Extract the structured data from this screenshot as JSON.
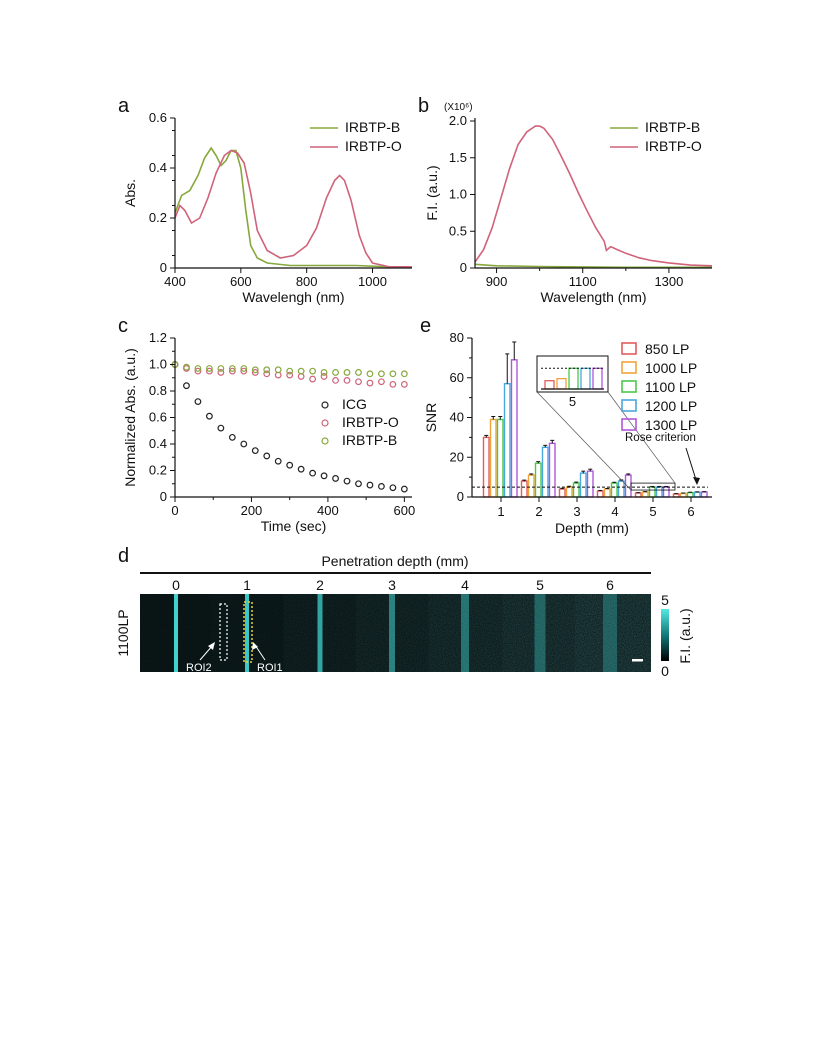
{
  "colors": {
    "green": "#86a83c",
    "pink": "#d0637a",
    "black": "#222222",
    "cyan": "#3fd3d0",
    "c850": "#e35d5d",
    "c1000": "#f0a33a",
    "c1100": "#4bc84b",
    "c1200": "#47a9de",
    "c1300": "#b058d8"
  },
  "chart_data": [
    {
      "panel_label": "a",
      "type": "line",
      "xlabel": "Wavelengh (nm)",
      "ylabel": "Abs.",
      "xlim": [
        400,
        1120
      ],
      "ylim": [
        0,
        0.6
      ],
      "xticks": [
        400,
        600,
        800,
        1000
      ],
      "yticks": [
        0,
        0.2,
        0.4,
        0.6
      ],
      "ytick_labels": [
        "0",
        "0.2",
        "0.4",
        "0.6"
      ],
      "legend_position": "top-right",
      "series": [
        {
          "name": "IRBTP-B",
          "color_key": "green",
          "x": [
            400,
            420,
            445,
            470,
            490,
            510,
            525,
            540,
            555,
            570,
            585,
            600,
            615,
            630,
            650,
            680,
            750,
            850,
            950,
            1050,
            1120
          ],
          "y": [
            0.22,
            0.29,
            0.31,
            0.37,
            0.44,
            0.48,
            0.45,
            0.41,
            0.43,
            0.47,
            0.47,
            0.4,
            0.23,
            0.09,
            0.04,
            0.02,
            0.01,
            0.01,
            0.01,
            0.005,
            0.005
          ]
        },
        {
          "name": "IRBTP-O",
          "color_key": "pink",
          "x": [
            400,
            415,
            430,
            450,
            475,
            500,
            525,
            550,
            570,
            590,
            610,
            630,
            650,
            680,
            720,
            760,
            800,
            830,
            860,
            885,
            900,
            915,
            935,
            960,
            980,
            1000,
            1050,
            1120
          ],
          "y": [
            0.2,
            0.25,
            0.23,
            0.18,
            0.2,
            0.28,
            0.38,
            0.45,
            0.47,
            0.46,
            0.42,
            0.3,
            0.15,
            0.07,
            0.04,
            0.05,
            0.09,
            0.16,
            0.28,
            0.35,
            0.37,
            0.35,
            0.27,
            0.13,
            0.06,
            0.02,
            0.005,
            0.005
          ]
        }
      ]
    },
    {
      "panel_label": "b",
      "type": "line",
      "xlabel": "Wavelength (nm)",
      "ylabel": "F.I. (a.u.)",
      "y_multiplier": "(X10⁶)",
      "xlim": [
        850,
        1400
      ],
      "ylim": [
        0,
        2.0
      ],
      "xticks": [
        900,
        1100,
        1300
      ],
      "yticks": [
        0,
        0.5,
        1.0,
        1.5,
        2.0
      ],
      "ytick_labels": [
        "0",
        "0.5",
        "1.0",
        "1.5",
        "2.0"
      ],
      "legend_position": "top-right",
      "series": [
        {
          "name": "IRBTP-B",
          "color_key": "green",
          "x": [
            850,
            900,
            1000,
            1100,
            1200,
            1300,
            1400
          ],
          "y": [
            0.05,
            0.03,
            0.02,
            0.015,
            0.01,
            0.01,
            0.01
          ]
        },
        {
          "name": "IRBTP-O",
          "color_key": "pink",
          "x": [
            850,
            870,
            890,
            910,
            930,
            950,
            970,
            990,
            1000,
            1010,
            1030,
            1050,
            1070,
            1090,
            1110,
            1130,
            1150,
            1155,
            1165,
            1180,
            1200,
            1230,
            1260,
            1300,
            1350,
            1400
          ],
          "y": [
            0.08,
            0.25,
            0.55,
            0.95,
            1.35,
            1.68,
            1.85,
            1.93,
            1.93,
            1.9,
            1.75,
            1.52,
            1.28,
            1.02,
            0.78,
            0.55,
            0.36,
            0.24,
            0.29,
            0.25,
            0.2,
            0.14,
            0.1,
            0.07,
            0.04,
            0.03
          ]
        }
      ]
    },
    {
      "panel_label": "c",
      "type": "scatter",
      "xlabel": "Time (sec)",
      "ylabel": "Normalized Abs. (a.u.)",
      "xlim": [
        0,
        620
      ],
      "ylim": [
        0,
        1.2
      ],
      "xticks": [
        0,
        200,
        400,
        600
      ],
      "yticks": [
        0,
        0.2,
        0.4,
        0.6,
        0.8,
        1.0,
        1.2
      ],
      "ytick_labels": [
        "0",
        "0.2",
        "0.4",
        "0.6",
        "0.8",
        "1.0",
        "1.2"
      ],
      "legend_position": "center-right",
      "x": [
        0,
        30,
        60,
        90,
        120,
        150,
        180,
        210,
        240,
        270,
        300,
        330,
        360,
        390,
        420,
        450,
        480,
        510,
        540,
        570,
        600
      ],
      "series": [
        {
          "name": "ICG",
          "color_key": "black",
          "y": [
            1.0,
            0.84,
            0.72,
            0.61,
            0.52,
            0.45,
            0.4,
            0.35,
            0.31,
            0.27,
            0.24,
            0.21,
            0.18,
            0.16,
            0.14,
            0.12,
            0.1,
            0.09,
            0.08,
            0.07,
            0.06
          ]
        },
        {
          "name": "IRBTP-O",
          "color_key": "pink",
          "y": [
            1.0,
            0.97,
            0.95,
            0.95,
            0.94,
            0.95,
            0.95,
            0.94,
            0.93,
            0.92,
            0.92,
            0.91,
            0.89,
            0.91,
            0.88,
            0.88,
            0.87,
            0.86,
            0.87,
            0.85,
            0.85
          ]
        },
        {
          "name": "IRBTP-B",
          "color_key": "green",
          "y": [
            1.0,
            0.98,
            0.97,
            0.97,
            0.97,
            0.97,
            0.97,
            0.96,
            0.96,
            0.96,
            0.95,
            0.95,
            0.95,
            0.94,
            0.94,
            0.94,
            0.94,
            0.93,
            0.93,
            0.93,
            0.93
          ]
        }
      ]
    },
    {
      "panel_label": "e",
      "type": "bar",
      "xlabel": "Depth (mm)",
      "ylabel": "SNR",
      "ylim": [
        0,
        80
      ],
      "yticks": [
        0,
        20,
        40,
        60,
        80
      ],
      "categories": [
        "1",
        "2",
        "3",
        "4",
        "5",
        "6"
      ],
      "legend_position": "top-right",
      "threshold": {
        "value": 5,
        "label": "Rose criterion"
      },
      "inset_category": "5",
      "series": [
        {
          "name": "850 LP",
          "color_key": "c850",
          "values": [
            30,
            8,
            4,
            3,
            2,
            1.5
          ],
          "errors": [
            1,
            0.5,
            0.4,
            0.3,
            0.2,
            0.2
          ]
        },
        {
          "name": "1000 LP",
          "color_key": "c1000",
          "values": [
            39,
            11,
            5,
            4,
            2.5,
            1.8
          ],
          "errors": [
            1.5,
            0.6,
            0.4,
            0.3,
            0.2,
            0.2
          ]
        },
        {
          "name": "1100 LP",
          "color_key": "c1100",
          "values": [
            39,
            17,
            7,
            7,
            5,
            2.2
          ],
          "errors": [
            1.5,
            0.8,
            0.5,
            0.4,
            0.3,
            0.2
          ]
        },
        {
          "name": "1200 LP",
          "color_key": "c1200",
          "values": [
            57,
            25,
            12,
            8,
            5,
            2.4
          ],
          "errors": [
            15,
            1,
            1,
            0.6,
            0.3,
            0.2
          ]
        },
        {
          "name": "1300 LP",
          "color_key": "c1300",
          "values": [
            69,
            27,
            13,
            11,
            5,
            2.5
          ],
          "errors": [
            9,
            1.5,
            1,
            0.6,
            0.3,
            0.2
          ]
        }
      ]
    }
  ],
  "panel_d": {
    "panel_label": "d",
    "title": "Penetration depth (mm)",
    "depths": [
      "0",
      "1",
      "2",
      "3",
      "4",
      "5",
      "6"
    ],
    "row_label": "1100LP",
    "roi1": "ROI1",
    "roi2": "ROI2",
    "colorbar_max": "5",
    "colorbar_min": "0",
    "colorbar_label": "F.I. (a.u.)"
  }
}
